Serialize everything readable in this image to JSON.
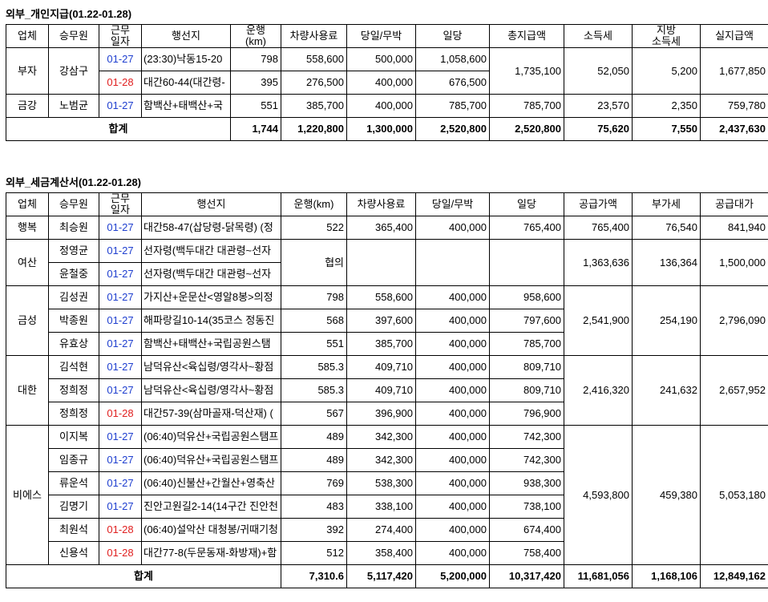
{
  "table1": {
    "title": "외부_개인지급(01.22-01.28)",
    "headers": [
      "업체",
      "승무원",
      "근무\n일자",
      "행선지",
      "운행\n(km)",
      "차량사용료",
      "당일/무박",
      "일당",
      "총지급액",
      "소득세",
      "지방\n소득세",
      "실지급액"
    ],
    "groups": [
      {
        "company": "부자",
        "crew": "강삼구",
        "rows": [
          {
            "date": "01-27",
            "date_color": "#1f3fcf",
            "route": "(23:30)낙동15-20",
            "km": "798",
            "fee": "558,600",
            "type": "500,000",
            "daily": "1,058,600"
          },
          {
            "date": "01-28",
            "date_color": "#e02020",
            "route": "대간60-44(대간령-",
            "km": "395",
            "fee": "276,500",
            "type": "400,000",
            "daily": "676,500"
          }
        ],
        "total_pay": "1,735,100",
        "income_tax": "52,050",
        "local_tax": "5,200",
        "net_pay": "1,677,850"
      },
      {
        "company": "금강",
        "crew": "노범균",
        "rows": [
          {
            "date": "01-27",
            "date_color": "#1f3fcf",
            "route": "함백산+태백산+국",
            "km": "551",
            "fee": "385,700",
            "type": "400,000",
            "daily": "785,700"
          }
        ],
        "total_pay": "785,700",
        "income_tax": "23,570",
        "local_tax": "2,350",
        "net_pay": "759,780"
      }
    ],
    "total": {
      "label": "합계",
      "values": [
        "1,744",
        "1,220,800",
        "1,300,000",
        "2,520,800",
        "2,520,800",
        "75,620",
        "7,550",
        "2,437,630"
      ]
    }
  },
  "table2": {
    "title": "외부_세금계산서(01.22-01.28)",
    "headers": [
      "업체",
      "승무원",
      "근무\n일자",
      "행선지",
      "운행(km)",
      "차량사용료",
      "당일/무박",
      "일당",
      "공급가액",
      "부가세",
      "공급대가"
    ],
    "groups": [
      {
        "company": "행복",
        "rows": [
          {
            "crew": "최승원",
            "date": "01-27",
            "date_color": "#1f3fcf",
            "route": "대간58-47(삽당령-닭목령) (정",
            "km": "522",
            "fee": "365,400",
            "type": "400,000",
            "daily": "765,400"
          }
        ],
        "supply": "765,400",
        "vat": "76,540",
        "amount": "841,940"
      },
      {
        "company": "여산",
        "km": "협의",
        "rows": [
          {
            "crew": "정영균",
            "date": "01-27",
            "date_color": "#1f3fcf",
            "route": "선자령(백두대간 대관령~선자"
          },
          {
            "crew": "윤철중",
            "date": "01-27",
            "date_color": "#1f3fcf",
            "route": "선자령(백두대간 대관령~선자"
          }
        ],
        "supply": "1,363,636",
        "vat": "136,364",
        "amount": "1,500,000"
      },
      {
        "company": "금성",
        "rows": [
          {
            "crew": "김성권",
            "date": "01-27",
            "date_color": "#1f3fcf",
            "route": "가지산+운문산<영알8봉>의정",
            "km": "798",
            "fee": "558,600",
            "type": "400,000",
            "daily": "958,600"
          },
          {
            "crew": "박종원",
            "date": "01-27",
            "date_color": "#1f3fcf",
            "route": "해파랑길10-14(35코스 정동진",
            "km": "568",
            "fee": "397,600",
            "type": "400,000",
            "daily": "797,600"
          },
          {
            "crew": "유효상",
            "date": "01-27",
            "date_color": "#1f3fcf",
            "route": "함백산+태백산+국립공원스탬",
            "km": "551",
            "fee": "385,700",
            "type": "400,000",
            "daily": "785,700"
          }
        ],
        "supply": "2,541,900",
        "vat": "254,190",
        "amount": "2,796,090"
      },
      {
        "company": "대한",
        "rows": [
          {
            "crew": "김석현",
            "date": "01-27",
            "date_color": "#1f3fcf",
            "route": "남덕유산<육십령/영각사~황점",
            "km": "585.3",
            "fee": "409,710",
            "type": "400,000",
            "daily": "809,710"
          },
          {
            "crew": "정희정",
            "date": "01-27",
            "date_color": "#1f3fcf",
            "route": "남덕유산<육십령/영각사~황점",
            "km": "585.3",
            "fee": "409,710",
            "type": "400,000",
            "daily": "809,710"
          },
          {
            "crew": "정희정",
            "date": "01-28",
            "date_color": "#e02020",
            "route": "대간57-39(삼마골재-덕산재) (",
            "km": "567",
            "fee": "396,900",
            "type": "400,000",
            "daily": "796,900"
          }
        ],
        "supply": "2,416,320",
        "vat": "241,632",
        "amount": "2,657,952"
      },
      {
        "company": "비에스",
        "rows": [
          {
            "crew": "이지복",
            "date": "01-27",
            "date_color": "#1f3fcf",
            "route": "(06:40)덕유산+국립공원스탬프",
            "km": "489",
            "fee": "342,300",
            "type": "400,000",
            "daily": "742,300"
          },
          {
            "crew": "임종규",
            "date": "01-27",
            "date_color": "#1f3fcf",
            "route": "(06:40)덕유산+국립공원스탬프",
            "km": "489",
            "fee": "342,300",
            "type": "400,000",
            "daily": "742,300"
          },
          {
            "crew": "류운석",
            "date": "01-27",
            "date_color": "#1f3fcf",
            "route": "(06:40)신불산+간월산+영축산",
            "km": "769",
            "fee": "538,300",
            "type": "400,000",
            "daily": "938,300"
          },
          {
            "crew": "김명기",
            "date": "01-27",
            "date_color": "#1f3fcf",
            "route": "진안고원길2-14(14구간 진안천",
            "km": "483",
            "fee": "338,100",
            "type": "400,000",
            "daily": "738,100"
          },
          {
            "crew": "최원석",
            "date": "01-28",
            "date_color": "#e02020",
            "route": "(06:40)설악산 대청봉/귀때기청",
            "km": "392",
            "fee": "274,400",
            "type": "400,000",
            "daily": "674,400"
          },
          {
            "crew": "신용석",
            "date": "01-28",
            "date_color": "#e02020",
            "route": "대간77-8(두문동재-화방재)+함",
            "km": "512",
            "fee": "358,400",
            "type": "400,000",
            "daily": "758,400"
          }
        ],
        "supply": "4,593,800",
        "vat": "459,380",
        "amount": "5,053,180"
      }
    ],
    "total": {
      "label": "합계",
      "values": [
        "7,310.6",
        "5,117,420",
        "5,200,000",
        "10,317,420",
        "11,681,056",
        "1,168,106",
        "12,849,162"
      ]
    }
  }
}
